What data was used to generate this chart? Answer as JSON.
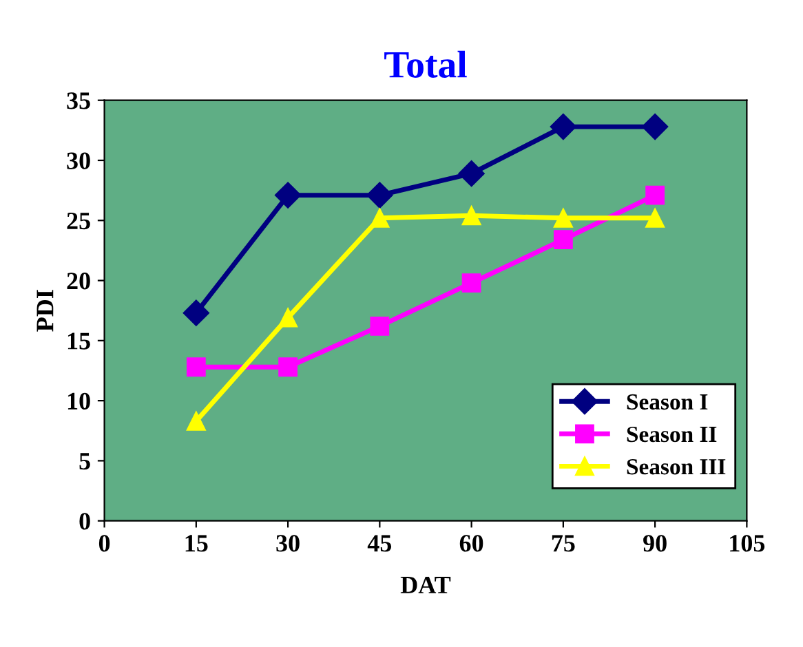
{
  "chart_data": {
    "type": "line",
    "title": "Total",
    "xlabel": "DAT",
    "ylabel": "PDI",
    "x": [
      15,
      30,
      45,
      60,
      75,
      90
    ],
    "series": [
      {
        "name": "Season I",
        "color": "#000080",
        "marker": "diamond",
        "values": [
          17.3,
          27.1,
          27.1,
          28.9,
          32.8,
          32.8
        ]
      },
      {
        "name": "Season II",
        "color": "#ff00ff",
        "marker": "square",
        "values": [
          12.8,
          12.8,
          16.2,
          19.8,
          23.4,
          27.1
        ]
      },
      {
        "name": "Season III",
        "color": "#ffff00",
        "marker": "triangle",
        "values": [
          8.3,
          16.9,
          25.2,
          25.4,
          25.2,
          25.2
        ]
      }
    ],
    "xlim": [
      0,
      105
    ],
    "xticks": [
      0,
      15,
      30,
      45,
      60,
      75,
      90,
      105
    ],
    "ylim": [
      0,
      35
    ],
    "yticks": [
      0,
      5,
      10,
      15,
      20,
      25,
      30,
      35
    ],
    "grid": false,
    "legend": "lower right",
    "line_style": "solid"
  }
}
